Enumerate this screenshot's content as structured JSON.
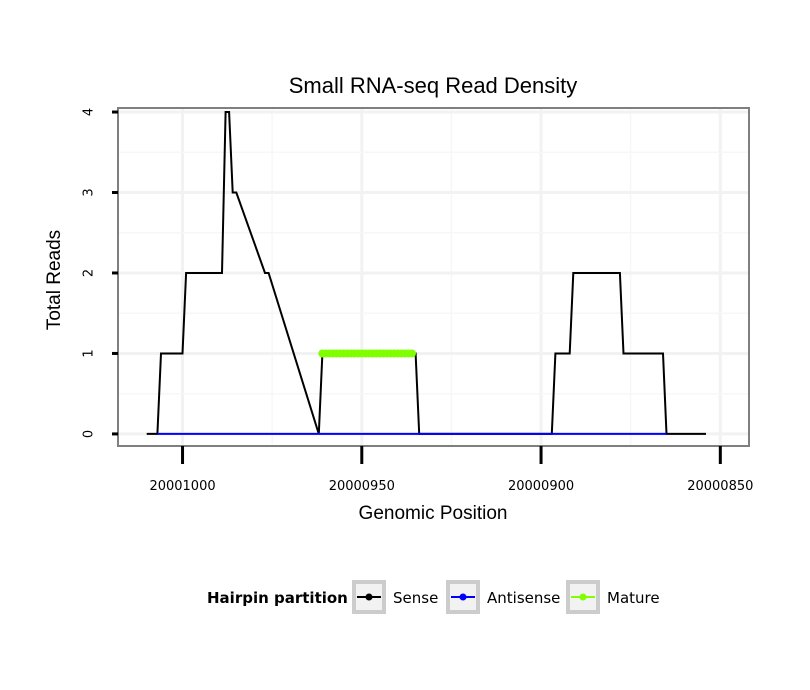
{
  "chart_data": {
    "type": "line",
    "title": "Small RNA-seq Read Density",
    "xlabel": "Genomic Position",
    "ylabel": "Total Reads",
    "x_reversed": true,
    "xlim": [
      20001018,
      20000842
    ],
    "ylim": [
      -0.15,
      4.05
    ],
    "x_ticks": [
      20001000,
      20000950,
      20000900,
      20000850
    ],
    "x_tick_labels": [
      "20001000",
      "20000950",
      "20000900",
      "20000850"
    ],
    "y_ticks": [
      0,
      1,
      2,
      3,
      4
    ],
    "y_tick_labels": [
      "0",
      "1",
      "2",
      "3",
      "4"
    ],
    "grid": true,
    "legend": {
      "title": "Hairpin partition",
      "position": "bottom",
      "entries": [
        "Sense",
        "Antisense",
        "Mature"
      ]
    },
    "series": [
      {
        "name": "Sense",
        "color": "#000000",
        "x": [
          20001010,
          20001007,
          20001006,
          20001000,
          20000999,
          20000989,
          20000988,
          20000987,
          20000986,
          20000985,
          20000977,
          20000976,
          20000962,
          20000961,
          20000960,
          20000935,
          20000934,
          20000897,
          20000896,
          20000892,
          20000891,
          20000878,
          20000877,
          20000866,
          20000865,
          20000854
        ],
        "values": [
          0,
          0,
          1,
          1,
          2,
          2,
          4,
          4,
          3,
          3,
          2,
          2,
          0,
          1,
          1,
          1,
          0,
          0,
          1,
          1,
          2,
          2,
          1,
          1,
          0,
          0
        ]
      },
      {
        "name": "Antisense",
        "color": "#0000ff",
        "x": [
          20001007,
          20000865
        ],
        "values": [
          0,
          0
        ]
      },
      {
        "name": "Mature",
        "color": "#7fff00",
        "x": [
          20000961,
          20000960,
          20000959,
          20000958,
          20000957,
          20000956,
          20000955,
          20000954,
          20000953,
          20000952,
          20000951,
          20000950,
          20000949,
          20000948,
          20000947,
          20000946,
          20000945,
          20000944,
          20000943,
          20000942,
          20000941,
          20000940,
          20000939,
          20000938,
          20000937,
          20000936
        ],
        "values": [
          1,
          1,
          1,
          1,
          1,
          1,
          1,
          1,
          1,
          1,
          1,
          1,
          1,
          1,
          1,
          1,
          1,
          1,
          1,
          1,
          1,
          1,
          1,
          1,
          1,
          1
        ]
      }
    ]
  }
}
